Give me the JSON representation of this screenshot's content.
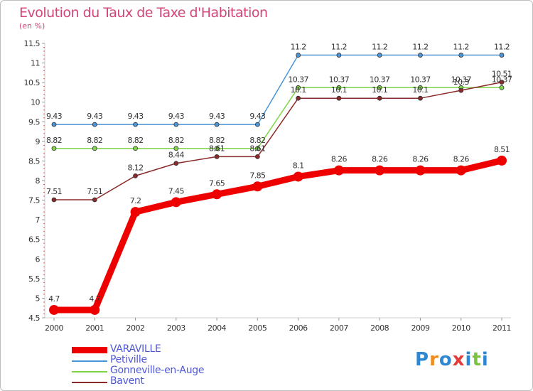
{
  "chart_data": {
    "type": "line",
    "title": "Evolution du Taux de Taxe d'Habitation",
    "subtitle": "(en %)",
    "xlabel": "",
    "ylabel": "",
    "x": [
      "2000",
      "2001",
      "2002",
      "2003",
      "2004",
      "2005",
      "2006",
      "2007",
      "2008",
      "2009",
      "2010",
      "2011"
    ],
    "ylim": [
      4.5,
      11.5
    ],
    "yticks": [
      "4.5",
      "5",
      "5.5",
      "6",
      "6.5",
      "7",
      "7.5",
      "8",
      "8.5",
      "9",
      "9.5",
      "10",
      "10.5",
      "11",
      "11.5"
    ],
    "grid": false,
    "legend_position": "bottom-left",
    "series": [
      {
        "name": "Petiville",
        "color": "#4b94d6",
        "values": [
          9.43,
          9.43,
          9.43,
          9.43,
          9.43,
          9.43,
          11.2,
          11.2,
          11.2,
          11.2,
          11.2,
          11.2
        ],
        "labels": [
          "9.43",
          "9.43",
          "9.43",
          "9.43",
          "9.43",
          "9.43",
          "11.2",
          "11.2",
          "11.2",
          "11.2",
          "11.2",
          "11.2"
        ]
      },
      {
        "name": "Gonneville-en-Auge",
        "color": "#7fd64a",
        "values": [
          8.82,
          8.82,
          8.82,
          8.82,
          8.82,
          8.82,
          10.37,
          10.37,
          10.37,
          10.37,
          10.37,
          10.37
        ],
        "labels": [
          "8.82",
          "8.82",
          "8.82",
          "8.82",
          "8.82",
          "8.82",
          "10.37",
          "10.37",
          "10.37",
          "10.37",
          "10.37",
          "10.37"
        ]
      },
      {
        "name": "Bavent",
        "color": "#8a2a2a",
        "values": [
          7.51,
          7.51,
          8.12,
          8.44,
          8.61,
          8.61,
          10.1,
          10.1,
          10.1,
          10.1,
          10.3,
          10.51
        ],
        "labels": [
          "7.51",
          "7.51",
          "8.12",
          "8.44",
          "8.61",
          "8.61",
          "10.1",
          "10.1",
          "10.1",
          "10.1",
          "10.3",
          "10.51"
        ]
      },
      {
        "name": "VARAVILLE",
        "color": "#ee0000",
        "values": [
          4.7,
          4.7,
          7.2,
          7.45,
          7.65,
          7.85,
          8.1,
          8.26,
          8.26,
          8.26,
          8.26,
          8.51
        ],
        "labels": [
          "4.7",
          "4.7",
          "7.2",
          "7.45",
          "7.65",
          "7.85",
          "8.1",
          "8.26",
          "8.26",
          "8.26",
          "8.26",
          "8.51"
        ]
      }
    ]
  },
  "legend": {
    "items": [
      {
        "name": "VARAVILLE",
        "color": "#ee0000"
      },
      {
        "name": "Petiville",
        "color": "#4b94d6"
      },
      {
        "name": "Gonneville-en-Auge",
        "color": "#7fd64a"
      },
      {
        "name": "Bavent",
        "color": "#8a2a2a"
      }
    ]
  },
  "logo": {
    "text": "Proxiti"
  }
}
